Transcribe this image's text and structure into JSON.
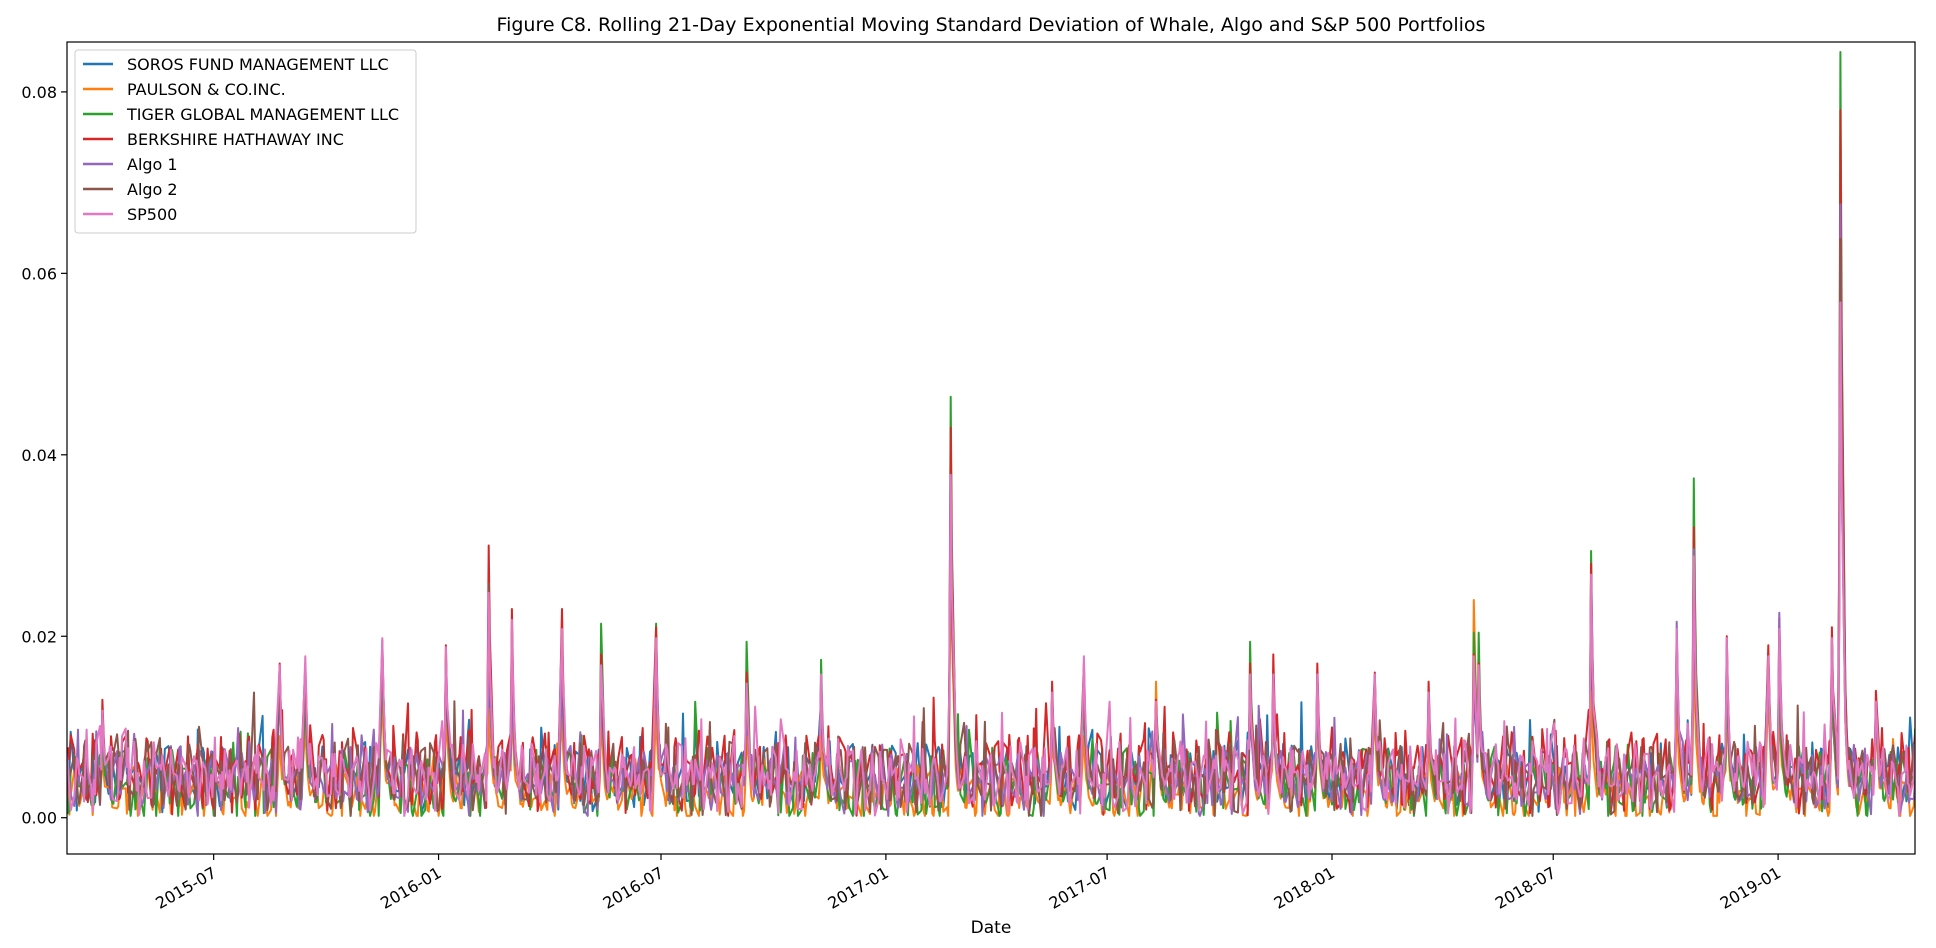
{
  "chart_data": {
    "type": "line",
    "title": "Figure C8. Rolling 21-Day Exponential Moving Standard Deviation of Whale, Algo and S&P 500 Portfolios",
    "xlabel": "Date",
    "ylabel": "",
    "xlim": [
      "2015-03-03",
      "2019-04-23"
    ],
    "ylim": [
      -0.004,
      0.0855
    ],
    "yticks": [
      0.0,
      0.02,
      0.04,
      0.06,
      0.08
    ],
    "ytick_labels": [
      "0.00",
      "0.02",
      "0.04",
      "0.06",
      "0.08"
    ],
    "xticks": [
      "2015-07-01",
      "2016-01-01",
      "2016-07-01",
      "2017-01-01",
      "2017-07-01",
      "2018-01-01",
      "2018-07-01",
      "2019-01-01"
    ],
    "xtick_labels": [
      "2015-07",
      "2016-01",
      "2016-07",
      "2017-01",
      "2017-07",
      "2018-01",
      "2018-07",
      "2019-01"
    ],
    "grid": false,
    "legend_position": "top-left",
    "peak_dates": [
      "2015-04-01",
      "2015-08-24",
      "2015-09-14",
      "2015-11-16",
      "2016-01-07",
      "2016-02-11",
      "2016-03-01",
      "2016-04-11",
      "2016-05-13",
      "2016-06-27",
      "2016-09-09",
      "2016-11-09",
      "2017-02-23",
      "2017-05-17",
      "2017-06-12",
      "2017-08-10",
      "2017-10-26",
      "2017-11-14",
      "2017-12-20",
      "2018-02-05",
      "2018-03-21",
      "2018-04-27",
      "2018-05-01",
      "2018-08-01",
      "2018-10-10",
      "2018-10-24",
      "2018-11-20",
      "2018-12-24",
      "2019-01-02",
      "2019-02-14",
      "2019-02-21",
      "2019-03-22"
    ],
    "series": [
      {
        "name": "SOROS FUND MANAGEMENT LLC",
        "color": "#1f77b4",
        "base": 0.0045,
        "amp": 0.004,
        "peaks": [
          0.008,
          0.013,
          0.011,
          0.015,
          0.014,
          0.016,
          0.015,
          0.012,
          0.012,
          0.013,
          0.01,
          0.011,
          0.035,
          0.012,
          0.011,
          0.01,
          0.012,
          0.01,
          0.01,
          0.011,
          0.009,
          0.012,
          0.014,
          0.02,
          0.014,
          0.025,
          0.013,
          0.014,
          0.013,
          0.013,
          0.055,
          0.01
        ]
      },
      {
        "name": "PAULSON & CO.INC.",
        "color": "#ff7f0e",
        "base": 0.0025,
        "amp": 0.0035,
        "peaks": [
          0.006,
          0.008,
          0.009,
          0.012,
          0.012,
          0.011,
          0.012,
          0.01,
          0.01,
          0.011,
          0.008,
          0.009,
          0.03,
          0.009,
          0.008,
          0.014,
          0.015,
          0.012,
          0.011,
          0.01,
          0.008,
          0.023,
          0.014,
          0.013,
          0.012,
          0.018,
          0.012,
          0.013,
          0.012,
          0.015,
          0.06,
          0.009
        ]
      },
      {
        "name": "TIGER GLOBAL MANAGEMENT LLC",
        "color": "#2ca02c",
        "base": 0.0035,
        "amp": 0.0045,
        "peaks": [
          0.008,
          0.014,
          0.012,
          0.016,
          0.016,
          0.02,
          0.017,
          0.017,
          0.02,
          0.02,
          0.018,
          0.016,
          0.045,
          0.012,
          0.011,
          0.011,
          0.018,
          0.013,
          0.012,
          0.014,
          0.011,
          0.019,
          0.019,
          0.028,
          0.019,
          0.036,
          0.014,
          0.015,
          0.014,
          0.015,
          0.083,
          0.011
        ]
      },
      {
        "name": "BERKSHIRE HATHAWAY INC",
        "color": "#d62728",
        "base": 0.005,
        "amp": 0.005,
        "peaks": [
          0.011,
          0.015,
          0.015,
          0.017,
          0.017,
          0.028,
          0.021,
          0.021,
          0.016,
          0.019,
          0.014,
          0.013,
          0.041,
          0.013,
          0.015,
          0.011,
          0.015,
          0.016,
          0.015,
          0.014,
          0.013,
          0.016,
          0.015,
          0.026,
          0.018,
          0.03,
          0.018,
          0.017,
          0.02,
          0.019,
          0.076,
          0.012
        ]
      },
      {
        "name": "Algo 1",
        "color": "#9467bd",
        "base": 0.004,
        "amp": 0.004,
        "peaks": [
          0.009,
          0.014,
          0.014,
          0.018,
          0.015,
          0.019,
          0.014,
          0.014,
          0.012,
          0.015,
          0.012,
          0.014,
          0.036,
          0.011,
          0.013,
          0.01,
          0.012,
          0.012,
          0.013,
          0.012,
          0.011,
          0.014,
          0.013,
          0.024,
          0.02,
          0.028,
          0.016,
          0.015,
          0.021,
          0.017,
          0.066,
          0.011
        ]
      },
      {
        "name": "Algo 2",
        "color": "#8c564b",
        "base": 0.0045,
        "amp": 0.0045,
        "peaks": [
          0.01,
          0.015,
          0.014,
          0.017,
          0.016,
          0.024,
          0.019,
          0.019,
          0.014,
          0.017,
          0.013,
          0.013,
          0.033,
          0.012,
          0.014,
          0.01,
          0.013,
          0.014,
          0.014,
          0.013,
          0.012,
          0.015,
          0.014,
          0.022,
          0.017,
          0.024,
          0.017,
          0.016,
          0.018,
          0.018,
          0.062,
          0.011
        ]
      },
      {
        "name": "SP500",
        "color": "#e377c2",
        "base": 0.0045,
        "amp": 0.0045,
        "peaks": [
          0.01,
          0.015,
          0.016,
          0.018,
          0.017,
          0.023,
          0.02,
          0.019,
          0.015,
          0.018,
          0.013,
          0.014,
          0.036,
          0.012,
          0.016,
          0.011,
          0.014,
          0.014,
          0.014,
          0.014,
          0.012,
          0.016,
          0.015,
          0.025,
          0.019,
          0.027,
          0.018,
          0.016,
          0.019,
          0.018,
          0.055,
          0.011
        ]
      }
    ]
  }
}
